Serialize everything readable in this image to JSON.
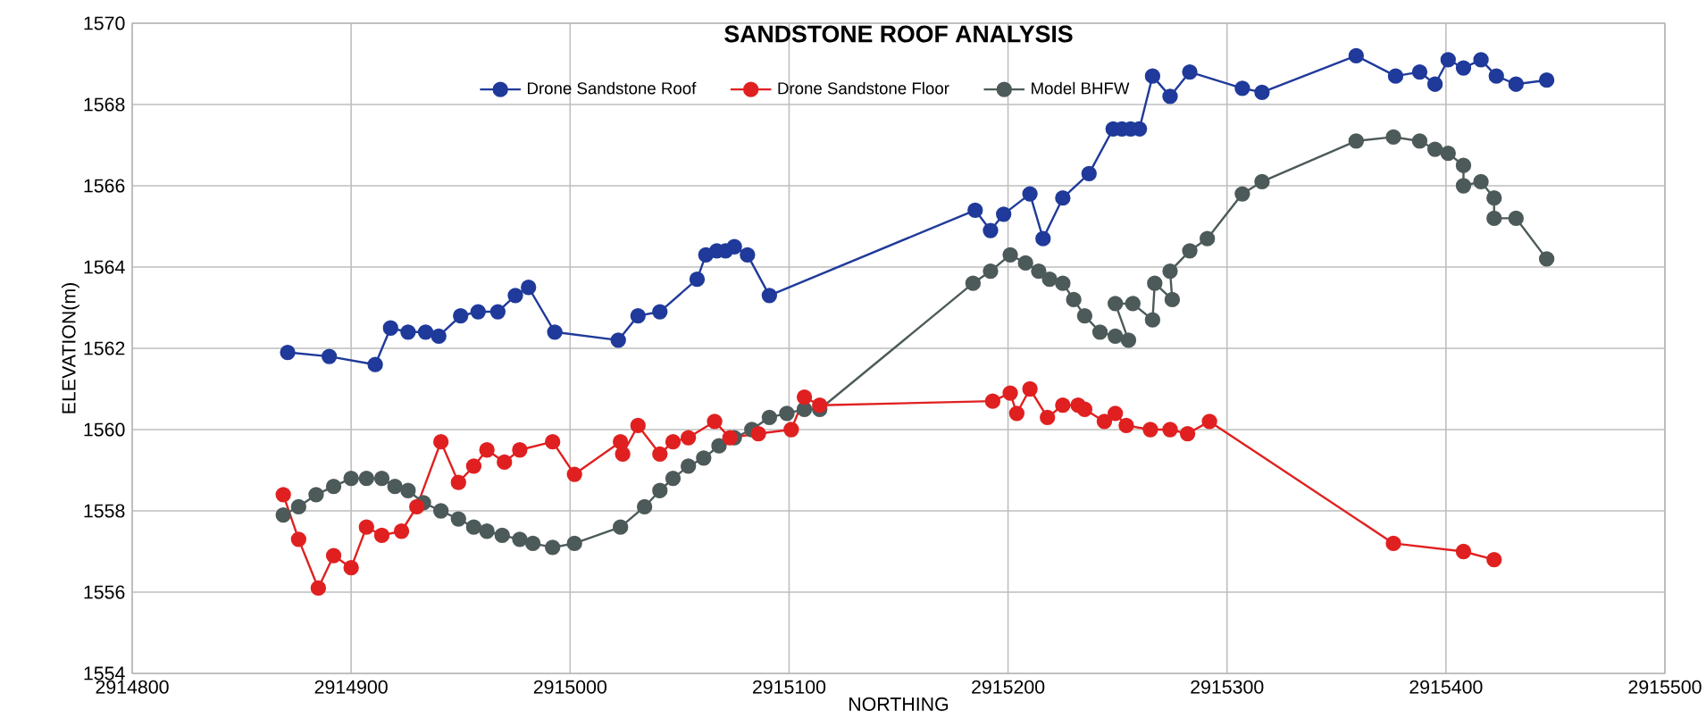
{
  "chart_data": {
    "type": "line",
    "title": "SANDSTONE ROOF ANALYSIS",
    "xlabel": "NORTHING",
    "ylabel": "ELEVATION(m)",
    "xlim": [
      2914800,
      2915500
    ],
    "xticks": [
      2914800,
      2914900,
      2915000,
      2915100,
      2915200,
      2915300,
      2915400,
      2915500
    ],
    "ylim": [
      1554,
      1570
    ],
    "yticks": [
      1554,
      1556,
      1558,
      1560,
      1562,
      1564,
      1566,
      1568,
      1570
    ],
    "grid": true,
    "legend": "top",
    "marker": "circle",
    "line_style": "solid",
    "series": [
      {
        "name": "Drone Sandstone Roof",
        "color": "#1f3a9a",
        "x": [
          2914871,
          2914890,
          2914911,
          2914918,
          2914926,
          2914934,
          2914940,
          2914950,
          2914958,
          2914967,
          2914975,
          2914981,
          2914993,
          2915022,
          2915031,
          2915041,
          2915058,
          2915062,
          2915067,
          2915071,
          2915075,
          2915081,
          2915091,
          2915185,
          2915192,
          2915198,
          2915210,
          2915216,
          2915225,
          2915237,
          2915248,
          2915252,
          2915256,
          2915260,
          2915266,
          2915274,
          2915283,
          2915307,
          2915316,
          2915359,
          2915377,
          2915388,
          2915395,
          2915401,
          2915408,
          2915416,
          2915423,
          2915432,
          2915446
        ],
        "values": [
          1561.9,
          1561.8,
          1561.6,
          1562.5,
          1562.4,
          1562.4,
          1562.3,
          1562.8,
          1562.9,
          1562.9,
          1563.3,
          1563.5,
          1562.4,
          1562.2,
          1562.8,
          1562.9,
          1563.7,
          1564.3,
          1564.4,
          1564.4,
          1564.5,
          1564.3,
          1563.3,
          1565.4,
          1564.9,
          1565.3,
          1565.8,
          1564.7,
          1565.7,
          1566.3,
          1567.4,
          1567.4,
          1567.4,
          1567.4,
          1568.7,
          1568.2,
          1568.8,
          1568.4,
          1568.3,
          1569.2,
          1568.7,
          1568.8,
          1568.5,
          1569.1,
          1568.9,
          1569.1,
          1568.7,
          1568.5,
          1568.6
        ]
      },
      {
        "name": "Drone Sandstone Floor",
        "color": "#e02020",
        "x": [
          2914869,
          2914876,
          2914885,
          2914892,
          2914900,
          2914907,
          2914914,
          2914923,
          2914930,
          2914941,
          2914949,
          2914956,
          2914962,
          2914970,
          2914977,
          2914992,
          2915002,
          2915023,
          2915024,
          2915031,
          2915041,
          2915047,
          2915054,
          2915066,
          2915073,
          2915086,
          2915101,
          2915107,
          2915114,
          2915193,
          2915201,
          2915204,
          2915210,
          2915218,
          2915225,
          2915232,
          2915235,
          2915244,
          2915249,
          2915254,
          2915265,
          2915274,
          2915282,
          2915292,
          2915376,
          2915408,
          2915422
        ],
        "values": [
          1558.4,
          1557.3,
          1556.1,
          1556.9,
          1556.6,
          1557.6,
          1557.4,
          1557.5,
          1558.1,
          1559.7,
          1558.7,
          1559.1,
          1559.5,
          1559.2,
          1559.5,
          1559.7,
          1558.9,
          1559.7,
          1559.4,
          1560.1,
          1559.4,
          1559.7,
          1559.8,
          1560.2,
          1559.8,
          1559.9,
          1560.0,
          1560.8,
          1560.6,
          1560.7,
          1560.9,
          1560.4,
          1561.0,
          1560.3,
          1560.6,
          1560.6,
          1560.5,
          1560.2,
          1560.4,
          1560.1,
          1560.0,
          1560.0,
          1559.9,
          1560.2,
          1557.2,
          1557.0,
          1556.8
        ]
      },
      {
        "name": "Model BHFW",
        "color": "#4d5a5a",
        "x": [
          2914869,
          2914876,
          2914884,
          2914892,
          2914900,
          2914907,
          2914914,
          2914920,
          2914926,
          2914933,
          2914941,
          2914949,
          2914956,
          2914962,
          2914969,
          2914977,
          2914983,
          2914992,
          2915002,
          2915023,
          2915034,
          2915041,
          2915047,
          2915054,
          2915061,
          2915068,
          2915075,
          2915083,
          2915091,
          2915099,
          2915107,
          2915114,
          2915184,
          2915192,
          2915201,
          2915208,
          2915214,
          2915219,
          2915225,
          2915230,
          2915235,
          2915242,
          2915249,
          2915255,
          2915249,
          2915257,
          2915266,
          2915267,
          2915275,
          2915274,
          2915283,
          2915291,
          2915307,
          2915316,
          2915359,
          2915376,
          2915388,
          2915395,
          2915401,
          2915408,
          2915408,
          2915416,
          2915422,
          2915422,
          2915432,
          2915446
        ],
        "values": [
          1557.9,
          1558.1,
          1558.4,
          1558.6,
          1558.8,
          1558.8,
          1558.8,
          1558.6,
          1558.5,
          1558.2,
          1558.0,
          1557.8,
          1557.6,
          1557.5,
          1557.4,
          1557.3,
          1557.2,
          1557.1,
          1557.2,
          1557.6,
          1558.1,
          1558.5,
          1558.8,
          1559.1,
          1559.3,
          1559.6,
          1559.8,
          1560.0,
          1560.3,
          1560.4,
          1560.5,
          1560.5,
          1563.6,
          1563.9,
          1564.3,
          1564.1,
          1563.9,
          1563.7,
          1563.6,
          1563.2,
          1562.8,
          1562.4,
          1562.3,
          1562.2,
          1563.1,
          1563.1,
          1562.7,
          1563.6,
          1563.2,
          1563.9,
          1564.4,
          1564.7,
          1565.8,
          1566.1,
          1567.1,
          1567.2,
          1567.1,
          1566.9,
          1566.8,
          1566.5,
          1566.0,
          1566.1,
          1565.7,
          1565.2,
          1565.2,
          1564.2
        ]
      }
    ]
  }
}
